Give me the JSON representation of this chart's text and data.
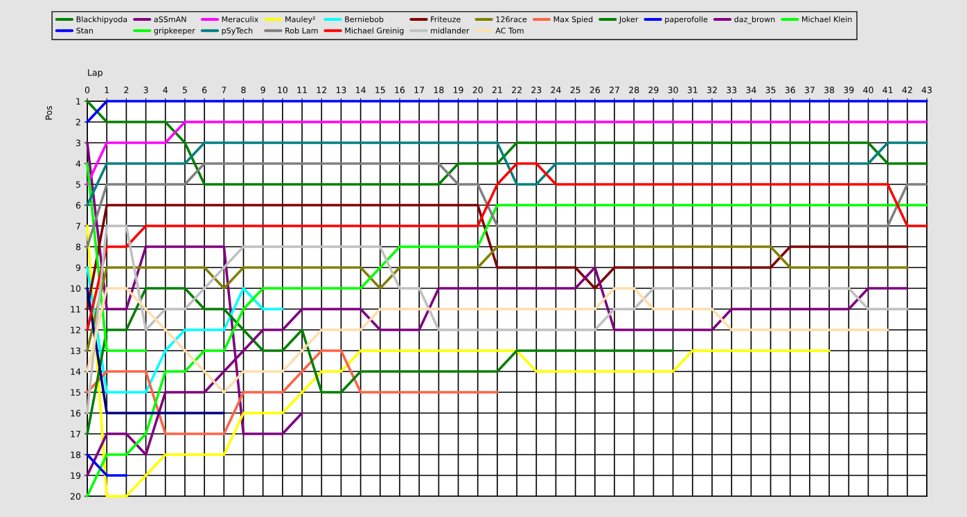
{
  "chart_data": {
    "type": "line",
    "xlabel": "Lap",
    "ylabel": "Pos",
    "x": [
      0,
      1,
      2,
      3,
      4,
      5,
      6,
      7,
      8,
      9,
      10,
      11,
      12,
      13,
      14,
      15,
      16,
      17,
      18,
      19,
      20,
      21,
      22,
      23,
      24,
      25,
      26,
      27,
      28,
      29,
      30,
      31,
      32,
      33,
      34,
      35,
      36,
      37,
      38,
      39,
      40,
      41,
      42,
      43
    ],
    "xlim": [
      0,
      43
    ],
    "xticks": [
      0,
      1,
      2,
      3,
      4,
      5,
      6,
      7,
      8,
      9,
      10,
      11,
      12,
      13,
      14,
      15,
      16,
      17,
      18,
      19,
      20,
      21,
      22,
      23,
      24,
      25,
      26,
      27,
      28,
      29,
      30,
      31,
      32,
      33,
      34,
      35,
      36,
      37,
      38,
      39,
      40,
      41,
      42,
      43
    ],
    "ylim": [
      20,
      1
    ],
    "yticks": [
      1,
      2,
      3,
      4,
      5,
      6,
      7,
      8,
      9,
      10,
      11,
      12,
      13,
      14,
      15,
      16,
      17,
      18,
      19,
      20
    ],
    "grid": true,
    "legend": "top",
    "marker": "none",
    "line_style": "solid",
    "series": [
      {
        "name": "Blackhipyoda",
        "color": "#008000",
        "values": [
          1,
          2,
          2,
          2,
          2,
          3,
          5,
          5,
          5,
          5,
          5,
          5,
          5,
          5,
          5,
          5,
          5,
          5,
          5,
          4,
          4,
          4,
          3,
          3,
          3,
          3,
          3,
          3,
          3,
          3,
          3,
          3,
          3,
          3,
          3,
          3,
          3,
          3,
          3,
          3,
          3,
          4,
          4,
          4
        ]
      },
      {
        "name": "aSSmAN",
        "color": "#800080",
        "values": [
          3,
          11,
          11,
          8,
          8,
          8,
          8,
          8,
          17,
          17,
          17,
          16,
          null,
          null,
          null,
          null,
          null,
          null,
          null,
          null,
          null,
          null,
          null,
          null,
          null,
          null,
          null,
          null,
          null,
          null,
          null,
          null,
          null,
          null,
          null,
          null,
          null,
          null,
          null,
          null,
          null,
          null,
          null,
          null
        ]
      },
      {
        "name": "Meraculix",
        "color": "#ff00ff",
        "values": [
          5,
          3,
          3,
          3,
          3,
          2,
          2,
          2,
          2,
          2,
          2,
          2,
          2,
          2,
          2,
          2,
          2,
          2,
          2,
          2,
          2,
          2,
          2,
          2,
          2,
          2,
          2,
          2,
          2,
          2,
          2,
          2,
          2,
          2,
          2,
          2,
          2,
          2,
          2,
          2,
          2,
          2,
          2,
          2
        ]
      },
      {
        "name": "Mauley²",
        "color": "#ffff00",
        "values": [
          7,
          20,
          20,
          19,
          18,
          18,
          18,
          18,
          16,
          16,
          16,
          15,
          14,
          14,
          13,
          13,
          13,
          13,
          13,
          13,
          13,
          13,
          13,
          14,
          14,
          14,
          14,
          14,
          14,
          14,
          14,
          13,
          13,
          13,
          13,
          13,
          13,
          13,
          13,
          null,
          null,
          null,
          null,
          null
        ]
      },
      {
        "name": "Berniebob",
        "color": "#00ffff",
        "values": [
          9,
          15,
          15,
          15,
          13,
          12,
          12,
          12,
          10,
          11,
          11,
          null,
          null,
          null,
          null,
          null,
          null,
          null,
          null,
          null,
          null,
          null,
          null,
          null,
          null,
          null,
          null,
          null,
          null,
          null,
          null,
          null,
          null,
          null,
          null,
          null,
          null,
          null,
          null,
          null,
          null,
          null,
          null,
          null
        ]
      },
      {
        "name": "Friteuze",
        "color": "#800000",
        "values": [
          11,
          6,
          6,
          6,
          6,
          6,
          6,
          6,
          6,
          6,
          6,
          6,
          6,
          6,
          6,
          6,
          6,
          6,
          6,
          6,
          6,
          9,
          9,
          9,
          9,
          9,
          10,
          9,
          9,
          9,
          9,
          9,
          9,
          9,
          9,
          9,
          8,
          8,
          8,
          8,
          8,
          8,
          8,
          null
        ]
      },
      {
        "name": "126race",
        "color": "#808000",
        "values": [
          13,
          9,
          9,
          9,
          9,
          9,
          9,
          10,
          9,
          9,
          9,
          9,
          9,
          9,
          9,
          10,
          9,
          9,
          9,
          9,
          9,
          8,
          8,
          8,
          8,
          8,
          8,
          8,
          8,
          8,
          8,
          8,
          8,
          8,
          8,
          8,
          9,
          9,
          9,
          9,
          9,
          9,
          9,
          null
        ]
      },
      {
        "name": "Max Spied",
        "color": "#ff6347",
        "values": [
          15,
          14,
          14,
          14,
          17,
          17,
          17,
          17,
          15,
          15,
          15,
          14,
          13,
          13,
          15,
          15,
          15,
          15,
          15,
          15,
          15,
          15,
          null,
          null,
          null,
          null,
          null,
          null,
          null,
          null,
          null,
          null,
          null,
          null,
          null,
          null,
          null,
          null,
          null,
          null,
          null,
          null,
          null,
          null
        ]
      },
      {
        "name": "Joker",
        "color": "#008000",
        "values": [
          17,
          12,
          12,
          10,
          10,
          10,
          11,
          11,
          12,
          13,
          13,
          12,
          15,
          15,
          14,
          14,
          14,
          14,
          14,
          14,
          14,
          14,
          13,
          13,
          13,
          13,
          13,
          13,
          13,
          13,
          13,
          null,
          null,
          null,
          null,
          null,
          null,
          null,
          null,
          null,
          null,
          null,
          null,
          null
        ]
      },
      {
        "name": "paperofolle",
        "color": "#0000ff",
        "values": [
          2,
          1,
          1,
          1,
          1,
          1,
          1,
          1,
          1,
          1,
          1,
          1,
          1,
          1,
          1,
          1,
          1,
          1,
          1,
          1,
          1,
          1,
          1,
          1,
          1,
          1,
          1,
          1,
          1,
          1,
          1,
          1,
          1,
          1,
          1,
          1,
          1,
          1,
          1,
          1,
          1,
          1,
          1,
          1
        ]
      },
      {
        "name": "daz_brown",
        "color": "#800080",
        "values": [
          19,
          17,
          17,
          18,
          15,
          15,
          15,
          14,
          13,
          12,
          12,
          11,
          11,
          11,
          11,
          12,
          12,
          12,
          10,
          10,
          10,
          10,
          10,
          10,
          10,
          10,
          9,
          12,
          12,
          12,
          12,
          12,
          12,
          11,
          11,
          11,
          11,
          11,
          11,
          11,
          10,
          10,
          10,
          null
        ]
      },
      {
        "name": "Michael Klein",
        "color": "#00ff00",
        "values": [
          20,
          18,
          18,
          17,
          14,
          14,
          13,
          13,
          11,
          10,
          10,
          10,
          10,
          10,
          10,
          9,
          8,
          8,
          8,
          8,
          8,
          6,
          6,
          6,
          6,
          6,
          6,
          6,
          6,
          6,
          6,
          6,
          6,
          6,
          6,
          6,
          6,
          6,
          6,
          6,
          6,
          6,
          6,
          6
        ]
      },
      {
        "name": "Stan",
        "color": "#0000ff",
        "values": [
          18,
          19,
          19,
          null,
          null,
          null,
          null,
          null,
          null,
          null,
          null,
          null,
          null,
          null,
          null,
          null,
          null,
          null,
          null,
          null,
          null,
          null,
          null,
          null,
          null,
          null,
          null,
          null,
          null,
          null,
          null,
          null,
          null,
          null,
          null,
          null,
          null,
          null,
          null,
          null,
          null,
          null,
          null,
          null
        ]
      },
      {
        "name": "gripkeeper",
        "color": "#00ff00",
        "values": [
          4,
          13,
          13,
          13,
          null,
          null,
          null,
          null,
          null,
          null,
          null,
          null,
          null,
          null,
          null,
          null,
          null,
          null,
          null,
          null,
          null,
          null,
          null,
          null,
          null,
          null,
          null,
          null,
          null,
          null,
          null,
          null,
          null,
          null,
          null,
          null,
          null,
          null,
          null,
          null,
          null,
          null,
          null,
          null
        ]
      },
      {
        "name": "pSyTech",
        "color": "#008080",
        "values": [
          6,
          4,
          4,
          4,
          4,
          4,
          3,
          3,
          3,
          3,
          3,
          3,
          3,
          3,
          3,
          3,
          3,
          3,
          3,
          3,
          3,
          3,
          5,
          5,
          4,
          4,
          4,
          4,
          4,
          4,
          4,
          4,
          4,
          4,
          4,
          4,
          4,
          4,
          4,
          4,
          4,
          3,
          3,
          3
        ]
      },
      {
        "name": "Rob Lam",
        "color": "#808080",
        "values": [
          8,
          5,
          5,
          5,
          5,
          5,
          4,
          4,
          4,
          4,
          4,
          4,
          4,
          4,
          4,
          4,
          4,
          4,
          4,
          5,
          5,
          7,
          7,
          7,
          7,
          7,
          7,
          7,
          7,
          7,
          7,
          7,
          7,
          7,
          7,
          7,
          7,
          7,
          7,
          7,
          7,
          7,
          5,
          5
        ]
      },
      {
        "color": "#000080",
        "values": [
          10,
          16,
          16,
          16,
          16,
          16,
          16,
          16,
          null,
          null,
          null,
          null,
          null,
          null,
          null,
          null,
          null,
          null,
          null,
          null,
          null,
          null,
          null,
          null,
          null,
          null,
          null,
          null,
          null,
          null,
          null,
          null,
          null,
          null,
          null,
          null,
          null,
          null,
          null,
          null,
          null,
          null,
          null,
          null
        ]
      },
      {
        "name": "Michael Greinig",
        "color": "#ff0000",
        "values": [
          12,
          8,
          8,
          7,
          7,
          7,
          7,
          7,
          7,
          7,
          7,
          7,
          7,
          7,
          7,
          7,
          7,
          7,
          7,
          7,
          7,
          5,
          4,
          4,
          5,
          5,
          5,
          5,
          5,
          5,
          5,
          5,
          5,
          5,
          5,
          5,
          5,
          5,
          5,
          5,
          5,
          5,
          7,
          7
        ]
      },
      {
        "name": "midlander",
        "color": "#c0c0c0",
        "values": [
          16,
          7,
          7,
          12,
          11,
          11,
          10,
          9,
          8,
          8,
          8,
          8,
          8,
          8,
          8,
          8,
          10,
          10,
          12,
          12,
          12,
          12,
          12,
          12,
          12,
          12,
          12,
          11,
          11,
          10,
          10,
          10,
          10,
          10,
          10,
          10,
          10,
          10,
          10,
          10,
          11,
          11,
          11,
          null
        ]
      },
      {
        "name": "AC Tom",
        "color": "#ffdead",
        "values": [
          14,
          10,
          10,
          11,
          12,
          13,
          14,
          15,
          14,
          14,
          14,
          13,
          12,
          12,
          12,
          11,
          11,
          11,
          11,
          11,
          11,
          11,
          11,
          11,
          11,
          11,
          11,
          10,
          10,
          11,
          11,
          11,
          11,
          12,
          12,
          12,
          12,
          12,
          12,
          12,
          12,
          12,
          null,
          null
        ]
      }
    ]
  }
}
